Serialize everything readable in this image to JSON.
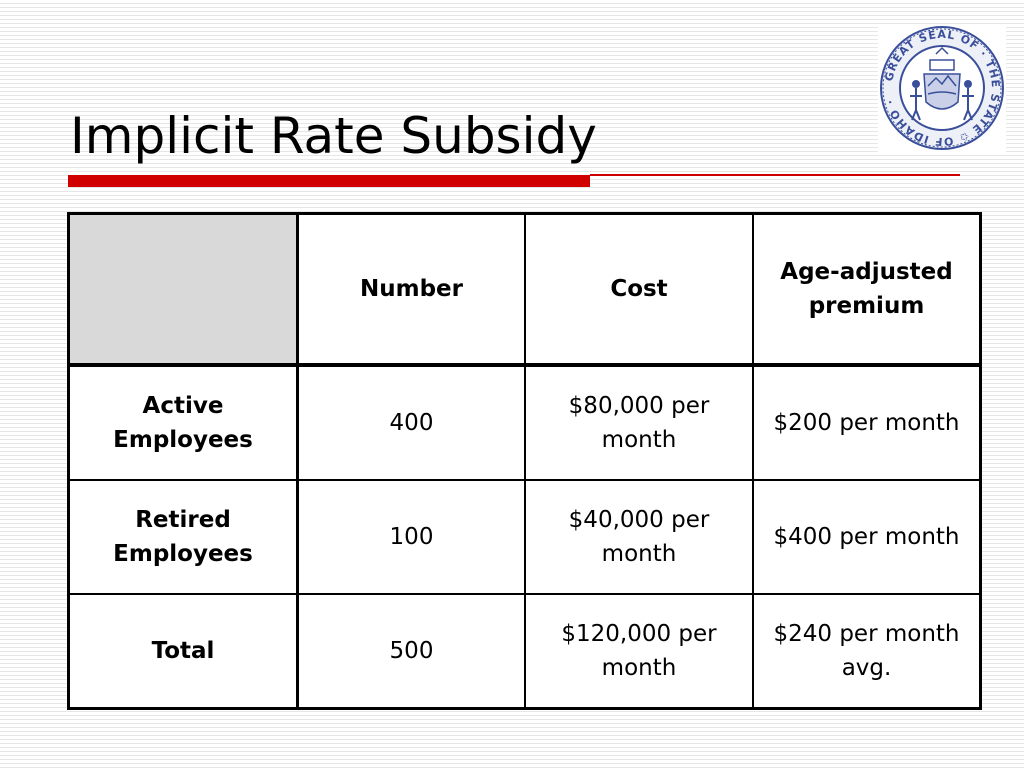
{
  "slide": {
    "title": "Implicit Rate Subsidy",
    "seal": {
      "icon": "great-seal-of-idaho-icon",
      "text": "GREAT SEAL OF THE STATE OF IDAHO",
      "color": "#3a4f9a"
    },
    "accent_color": "#d00000"
  },
  "table": {
    "headers": [
      "",
      "Number",
      "Cost",
      "Age-adjusted premium"
    ],
    "rows": [
      {
        "label": "Active Employees",
        "number": "400",
        "cost": "$80,000 per month",
        "premium": "$200 per month"
      },
      {
        "label": "Retired Employees",
        "number": "100",
        "cost": "$40,000 per month",
        "premium": "$400 per month"
      },
      {
        "label": "Total",
        "number": "500",
        "cost": "$120,000 per month",
        "premium": "$240 per month avg."
      }
    ]
  }
}
